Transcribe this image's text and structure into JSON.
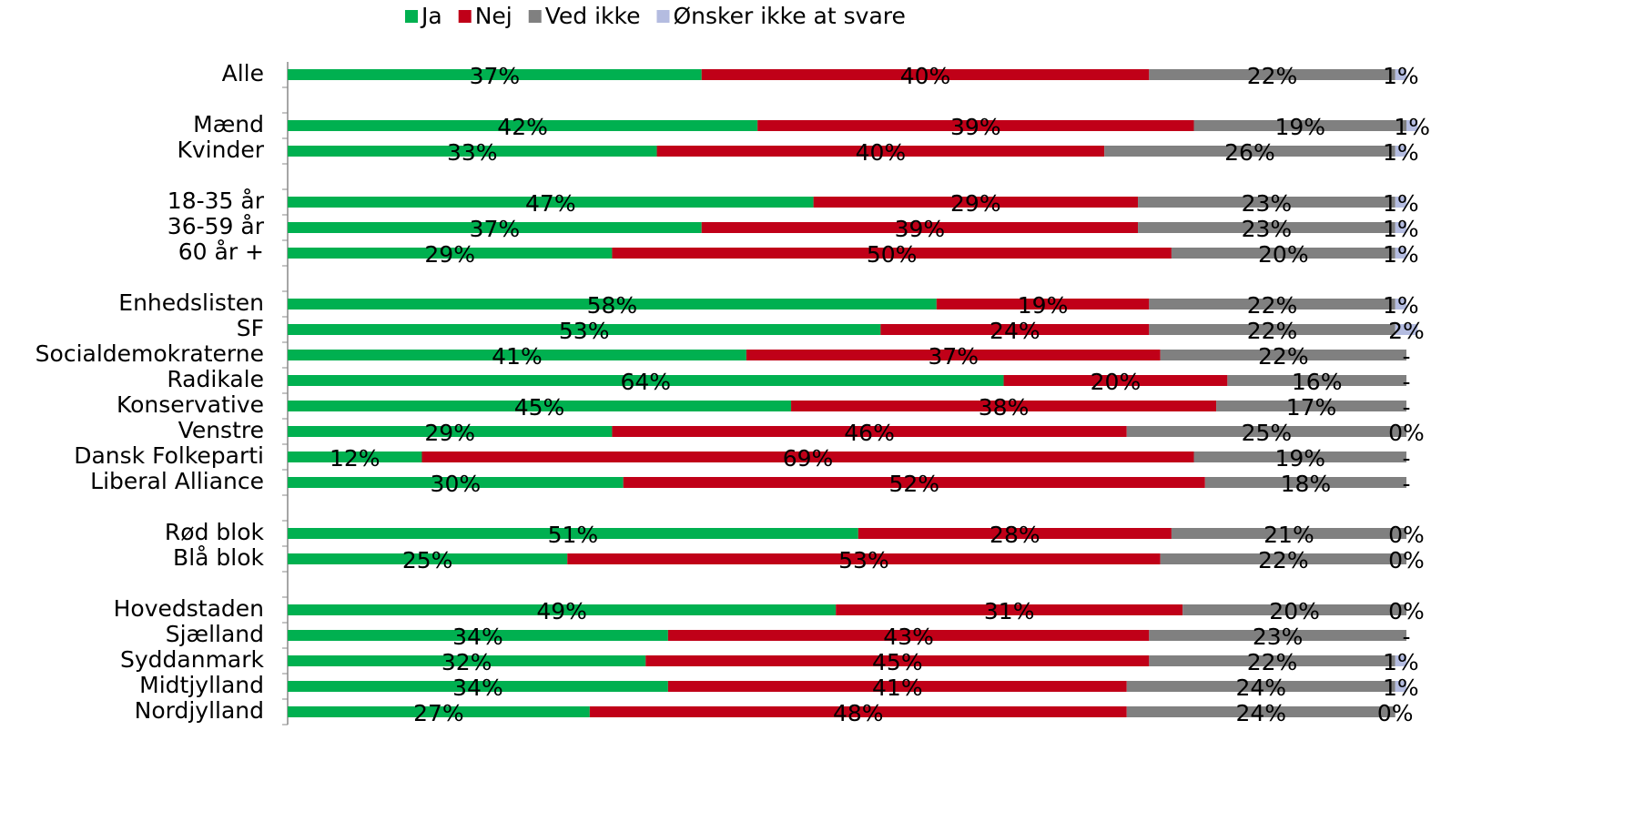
{
  "chart_data": {
    "type": "stacked-bar-horizontal",
    "categories": [
      "Alle",
      null,
      "Mænd",
      "Kvinder",
      null,
      "18-35 år",
      "36-59 år",
      "60 år +",
      null,
      "Enhedslisten",
      "SF",
      "Socialdemokraterne",
      "Radikale",
      "Konservative",
      "Venstre",
      "Dansk Folkeparti",
      "Liberal Alliance",
      null,
      "Rød blok",
      "Blå blok",
      null,
      "Hovedstaden",
      "Sjælland",
      "Syddanmark",
      "Midtjylland",
      "Nordjylland"
    ],
    "xlim": [
      0,
      100
    ],
    "legend": "top",
    "series": [
      {
        "name": "Ja",
        "color": "#00b050",
        "values": [
          37,
          null,
          42,
          33,
          null,
          47,
          37,
          29,
          null,
          58,
          53,
          41,
          64,
          45,
          29,
          12,
          30,
          null,
          51,
          25,
          null,
          49,
          34,
          32,
          34,
          27
        ],
        "value_labels": [
          "37%",
          null,
          "42%",
          "33%",
          null,
          "47%",
          "37%",
          "29%",
          null,
          "58%",
          "53%",
          "41%",
          "64%",
          "45%",
          "29%",
          "12%",
          "30%",
          null,
          "51%",
          "25%",
          null,
          "49%",
          "34%",
          "32%",
          "34%",
          "27%"
        ]
      },
      {
        "name": "Nej",
        "color": "#c00018",
        "values": [
          40,
          null,
          39,
          40,
          null,
          29,
          39,
          50,
          null,
          19,
          24,
          37,
          20,
          38,
          46,
          69,
          52,
          null,
          28,
          53,
          null,
          31,
          43,
          45,
          41,
          48
        ],
        "value_labels": [
          "40%",
          null,
          "39%",
          "40%",
          null,
          "29%",
          "39%",
          "50%",
          null,
          "19%",
          "24%",
          "37%",
          "20%",
          "38%",
          "46%",
          "69%",
          "52%",
          null,
          "28%",
          "53%",
          null,
          "31%",
          "43%",
          "45%",
          "41%",
          "48%"
        ]
      },
      {
        "name": "Ved ikke",
        "color": "#808080",
        "values": [
          22,
          null,
          19,
          26,
          null,
          23,
          23,
          20,
          null,
          22,
          22,
          22,
          16,
          17,
          25,
          19,
          18,
          null,
          21,
          22,
          null,
          20,
          23,
          22,
          24,
          24
        ],
        "value_labels": [
          "22%",
          null,
          "19%",
          "26%",
          null,
          "23%",
          "23%",
          "20%",
          null,
          "22%",
          "22%",
          "22%",
          "16%",
          "17%",
          "25%",
          "19%",
          "18%",
          null,
          "21%",
          "22%",
          null,
          "20%",
          "23%",
          "22%",
          "24%",
          "24%"
        ]
      },
      {
        "name": "Ønsker ikke at svare",
        "color": "#b4bce0",
        "values": [
          1,
          null,
          1,
          1,
          null,
          1,
          1,
          1,
          null,
          1,
          2,
          null,
          null,
          null,
          0,
          null,
          null,
          null,
          0,
          0,
          null,
          0,
          null,
          1,
          1,
          0
        ],
        "value_labels": [
          "1%",
          null,
          "1%",
          "1%",
          null,
          "1%",
          "1%",
          "1%",
          null,
          "1%",
          "2%",
          "-",
          "-",
          "-",
          "0%",
          "-",
          "-",
          null,
          "0%",
          "0%",
          null,
          "0%",
          "-",
          "1%",
          "1%",
          "0%"
        ]
      }
    ]
  }
}
